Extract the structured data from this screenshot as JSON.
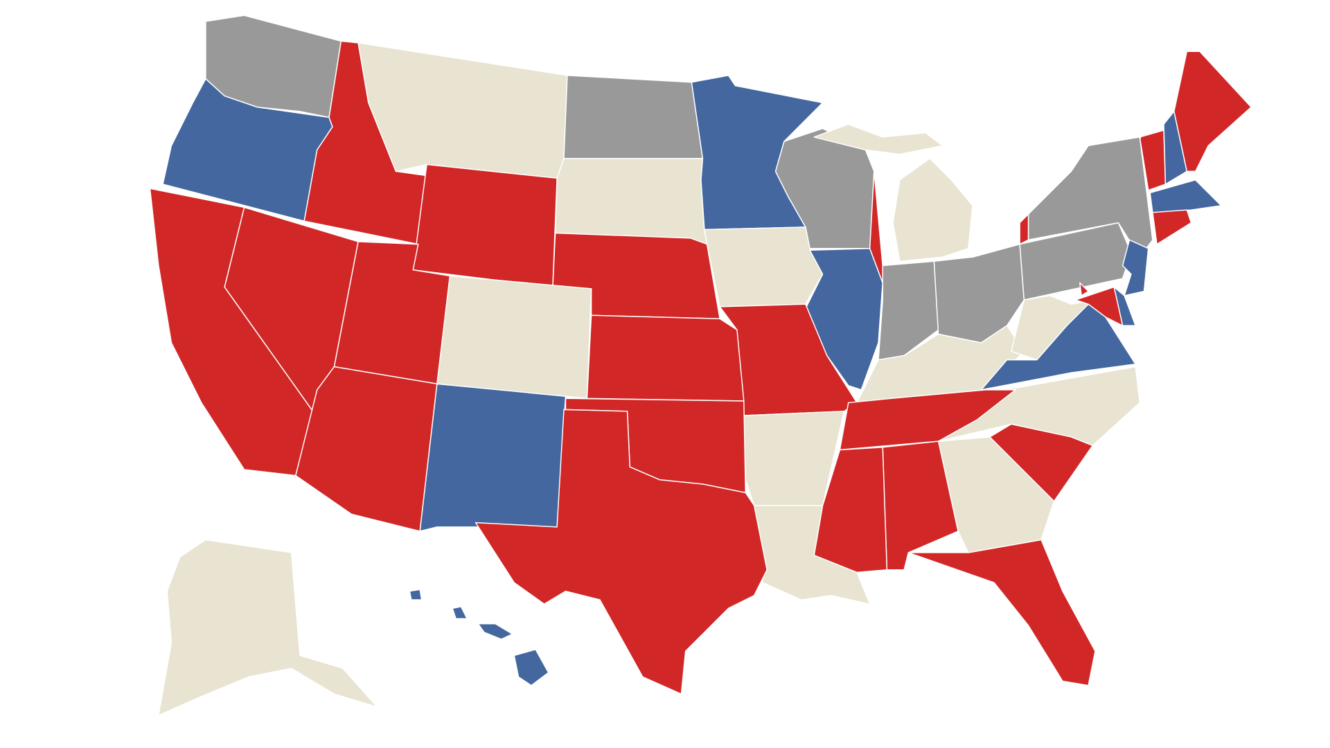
{
  "map": {
    "palette": [
      "#d22727",
      "#44679f",
      "#999999",
      "#e8e4d1"
    ],
    "border": "#ffffff",
    "fills": [
      2,
      1,
      0,
      3,
      2,
      3,
      0,
      0,
      1,
      2,
      3,
      3,
      3,
      1,
      2,
      2,
      3,
      3,
      2,
      2,
      0,
      1,
      0,
      1,
      1,
      0,
      1,
      3,
      0,
      0,
      3,
      0,
      1,
      0,
      0,
      0,
      0,
      0,
      1,
      3,
      3,
      0,
      0,
      0,
      0,
      0,
      3,
      1,
      1,
      1,
      1
    ]
  }
}
